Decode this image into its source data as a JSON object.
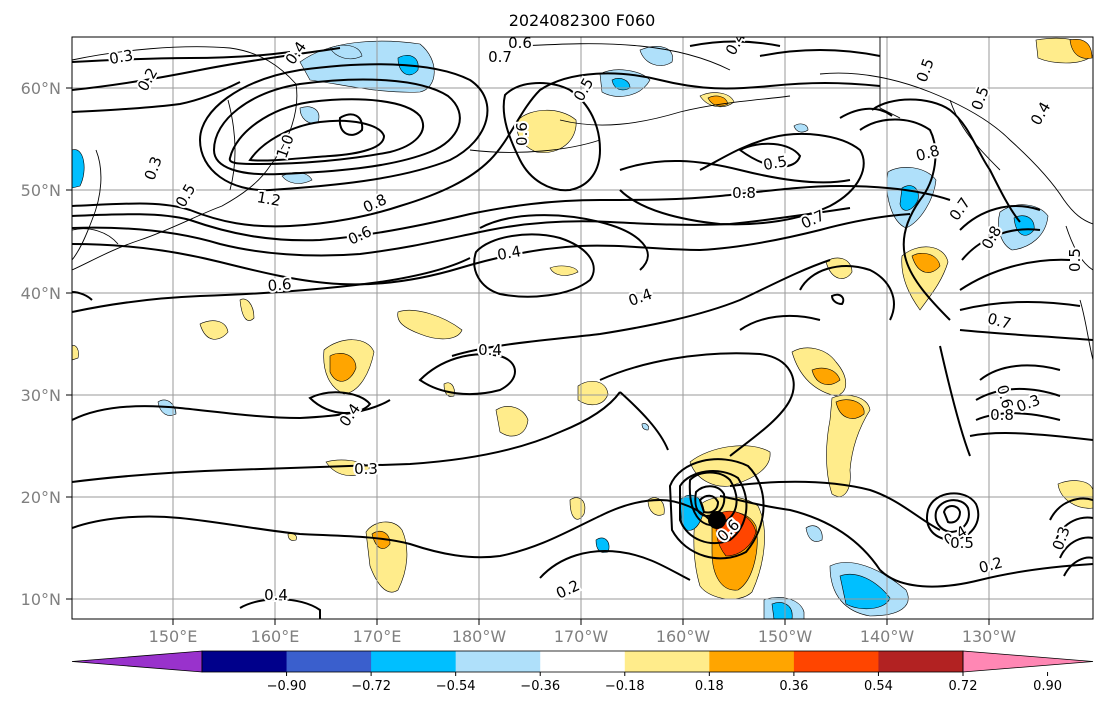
{
  "title": "2024082300 F060",
  "map": {
    "lat_ticks": [
      "60°N",
      "50°N",
      "40°N",
      "30°N",
      "20°N",
      "10°N"
    ],
    "lon_ticks": [
      "150°E",
      "160°E",
      "170°E",
      "180°W",
      "170°W",
      "160°W",
      "150°W",
      "140°W",
      "130°W"
    ],
    "contour_labels": [
      "0.3",
      "0.2",
      "0.4",
      "0.6",
      "0.7",
      "0.6",
      "0.5",
      "0.4",
      "0.5",
      "0.5",
      "0.4",
      "0.3",
      "1.0",
      "0.5",
      "1.2",
      "0.8",
      "0.6",
      "0.6",
      "0.5",
      "0.8",
      "0.7",
      "0.8",
      "0.7",
      "0.8",
      "0.4",
      "0.5",
      "0.4",
      "0.4",
      "0.7",
      "0.4",
      "0.3",
      "0.3",
      "0.8",
      "0.6",
      "0.6",
      "0.4",
      "0.5",
      "0.4",
      "0.2",
      "0.2",
      "0.3"
    ],
    "storm_marker": "tropical-cyclone-position"
  },
  "colorbar": {
    "ticks": [
      "−0.90",
      "−0.72",
      "−0.54",
      "−0.36",
      "−0.18",
      "0.18",
      "0.36",
      "0.54",
      "0.72",
      "0.90"
    ],
    "colors": [
      "#9932cc",
      "#00008b",
      "#3a5fcd",
      "#00bfff",
      "#afe0fa",
      "#ffffff",
      "#ffec8b",
      "#ffa500",
      "#ff4500",
      "#b22222",
      "#ff87b4"
    ]
  }
}
